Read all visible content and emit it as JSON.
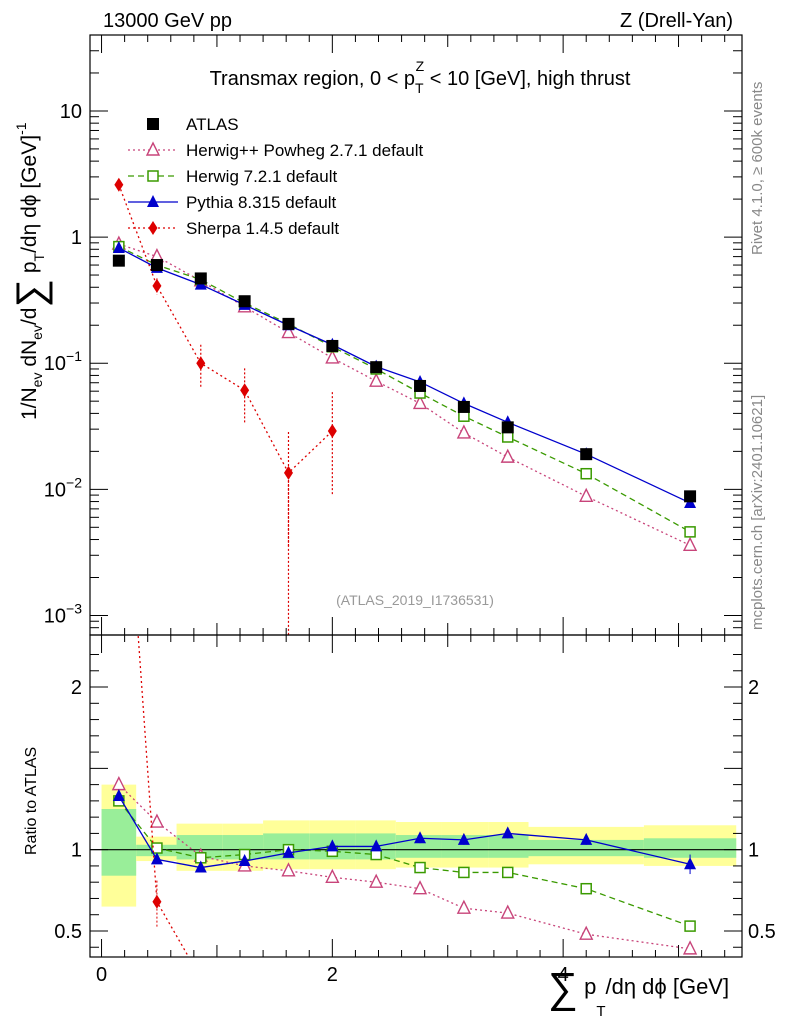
{
  "header": {
    "left": "13000 GeV pp",
    "right": "Z (Drell-Yan)"
  },
  "side": {
    "rivet": "Rivet 4.1.0, ≥ 600k events",
    "mcplots": "mcplots.cern.ch [arXiv:2401.10621]"
  },
  "chart_data": {
    "type": "scatter",
    "title": "Transmax region, 0 < p_T^Z < 10 [GeV], high thrust",
    "watermark": "(ATLAS_2019_I1736531)",
    "xlabel": "∑ p_T/dη dϕ [GeV]",
    "ylabel_main": "1/N_ev dN_ev/d∑ p_T/dη dϕ [GeV]^-1",
    "ylabel_ratio": "Ratio to ATLAS",
    "xlim": [
      -0.1,
      5.55
    ],
    "main_ylim": [
      0.0007,
      40
    ],
    "ratio_ylim": [
      0.34,
      2.32
    ],
    "main_yticks": [
      {
        "v": 10,
        "base": "10",
        "exp": ""
      },
      {
        "v": 1,
        "base": "1",
        "exp": ""
      },
      {
        "v": 0.1,
        "base": "10",
        "exp": "−1"
      },
      {
        "v": 0.01,
        "base": "10",
        "exp": "−2"
      },
      {
        "v": 0.001,
        "base": "10",
        "exp": "−3"
      }
    ],
    "ratio_yticks": [
      {
        "v": 2,
        "label": "2"
      },
      {
        "v": 1,
        "label": "1"
      },
      {
        "v": 0.5,
        "label": "0.5"
      }
    ],
    "xticks": [
      {
        "v": 0,
        "label": "0"
      },
      {
        "v": 2,
        "label": "2"
      },
      {
        "v": 4,
        "label": "4"
      }
    ],
    "bins": [
      [
        0,
        0.3
      ],
      [
        0.3,
        0.65
      ],
      [
        0.65,
        1.05
      ],
      [
        1.05,
        1.4
      ],
      [
        1.4,
        1.8
      ],
      [
        1.8,
        2.2
      ],
      [
        2.2,
        2.55
      ],
      [
        2.55,
        2.95
      ],
      [
        2.95,
        3.35
      ],
      [
        3.35,
        3.7
      ],
      [
        3.7,
        4.7
      ],
      [
        4.7,
        5.5
      ]
    ],
    "x": [
      0.15,
      0.48,
      0.86,
      1.24,
      1.62,
      2.0,
      2.38,
      2.76,
      3.14,
      3.52,
      4.2,
      5.1
    ],
    "band_yellow": [
      [
        0.65,
        1.4
      ],
      [
        0.93,
        1.08
      ],
      [
        0.87,
        1.16
      ],
      [
        0.87,
        1.16
      ],
      [
        0.88,
        1.18
      ],
      [
        0.88,
        1.18
      ],
      [
        0.88,
        1.18
      ],
      [
        0.89,
        1.17
      ],
      [
        0.89,
        1.17
      ],
      [
        0.89,
        1.17
      ],
      [
        0.91,
        1.14
      ],
      [
        0.9,
        1.15
      ]
    ],
    "band_green": [
      [
        0.84,
        1.25
      ],
      [
        0.96,
        1.03
      ],
      [
        0.94,
        1.09
      ],
      [
        0.94,
        1.09
      ],
      [
        0.94,
        1.1
      ],
      [
        0.94,
        1.1
      ],
      [
        0.94,
        1.1
      ],
      [
        0.95,
        1.09
      ],
      [
        0.95,
        1.09
      ],
      [
        0.95,
        1.09
      ],
      [
        0.96,
        1.06
      ],
      [
        0.95,
        1.07
      ]
    ],
    "series": [
      {
        "name": "ATLAS",
        "color": "#000000",
        "marker": "square-filled",
        "line": "none",
        "values": [
          0.65,
          0.6,
          0.47,
          0.31,
          0.205,
          0.137,
          0.093,
          0.066,
          0.045,
          0.031,
          0.019,
          0.0088
        ]
      },
      {
        "name": "Herwig++ Powheg 2.7.1 default",
        "color": "#c8447a",
        "marker": "triangle-open",
        "line": "dotted",
        "values": [
          0.88,
          0.7,
          0.45,
          0.28,
          0.175,
          0.11,
          0.072,
          0.048,
          0.028,
          0.018,
          0.0088,
          0.0036
        ],
        "ratio": [
          1.4,
          1.17,
          0.96,
          0.9,
          0.87,
          0.83,
          0.8,
          0.76,
          0.64,
          0.61,
          0.48,
          0.39
        ]
      },
      {
        "name": "Herwig 7.2.1 default",
        "color": "#3a9a00",
        "marker": "square-open",
        "line": "dashed",
        "values": [
          0.84,
          0.6,
          0.46,
          0.3,
          0.205,
          0.135,
          0.09,
          0.058,
          0.038,
          0.026,
          0.0133,
          0.0046
        ],
        "ratio": [
          1.3,
          1.01,
          0.95,
          0.97,
          1.0,
          0.99,
          0.97,
          0.89,
          0.86,
          0.86,
          0.76,
          0.53
        ]
      },
      {
        "name": "Pythia 8.315 default",
        "color": "#0000cc",
        "marker": "triangle-filled",
        "line": "solid",
        "values": [
          0.82,
          0.57,
          0.42,
          0.29,
          0.2,
          0.14,
          0.094,
          0.071,
          0.048,
          0.034,
          0.019,
          0.0078
        ],
        "ratio": [
          1.33,
          0.94,
          0.89,
          0.93,
          0.98,
          1.02,
          1.02,
          1.07,
          1.06,
          1.1,
          1.06,
          0.91
        ]
      },
      {
        "name": "Sherpa 1.4.5 default",
        "color": "#dd0000",
        "marker": "diamond-filled",
        "line": "dotted",
        "values": [
          2.6,
          0.41,
          0.1,
          0.061,
          0.0135,
          0.029
        ],
        "errors_low": [
          0.2,
          0.06,
          0.035,
          0.028,
          0.01,
          0.02
        ],
        "errors_high": [
          0.2,
          0.06,
          0.04,
          0.03,
          0.015,
          0.03
        ],
        "ratio": [
          4.0,
          0.68,
          0.21
        ]
      }
    ]
  }
}
